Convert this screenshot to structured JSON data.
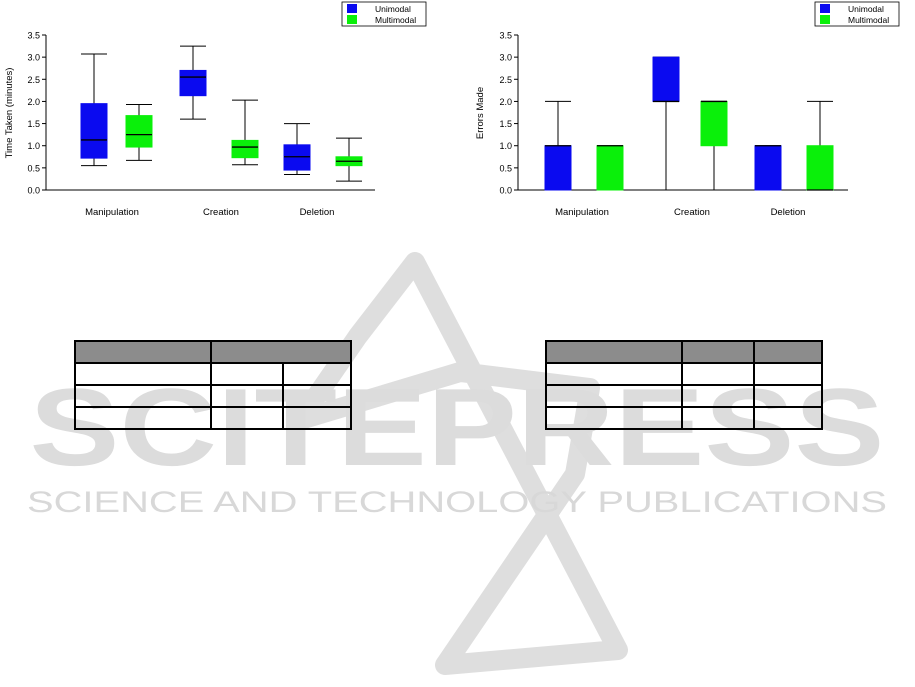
{
  "colors": {
    "unimodal": "#0a0af0",
    "multimodal": "#0af00a",
    "header_fill": "#8c8c8c",
    "watermark": "#d9d9d9"
  },
  "watermark": {
    "word": "SCITEPRESS",
    "tagline": "SCIENCE AND TECHNOLOGY PUBLICATIONS"
  },
  "chart_data": [
    {
      "type": "boxplot",
      "title": "",
      "xlabel": "",
      "ylabel": "Time Taken (minutes)",
      "ylim": [
        0,
        3.5
      ],
      "yticks": [
        "0.0",
        "0.5",
        "1.0",
        "1.5",
        "2.0",
        "2.5",
        "3.0",
        "3.5"
      ],
      "categories": [
        "Manipulation",
        "Creation",
        "Deletion"
      ],
      "legend": {
        "position": "top-right",
        "entries": [
          "Unimodal",
          "Multimodal"
        ]
      },
      "series": [
        {
          "name": "Unimodal",
          "boxes": [
            {
              "min": 0.55,
              "q1": 0.72,
              "median": 1.13,
              "q3": 1.95,
              "max": 3.07
            },
            {
              "min": 1.6,
              "q1": 2.13,
              "median": 2.55,
              "q3": 2.7,
              "max": 3.25
            },
            {
              "min": 0.35,
              "q1": 0.45,
              "median": 0.75,
              "q3": 1.02,
              "max": 1.5
            }
          ]
        },
        {
          "name": "Multimodal",
          "boxes": [
            {
              "min": 0.67,
              "q1": 0.97,
              "median": 1.25,
              "q3": 1.68,
              "max": 1.93
            },
            {
              "min": 0.57,
              "q1": 0.73,
              "median": 0.97,
              "q3": 1.12,
              "max": 2.03
            },
            {
              "min": 0.2,
              "q1": 0.55,
              "median": 0.65,
              "q3": 0.75,
              "max": 1.17
            }
          ]
        }
      ]
    },
    {
      "type": "boxplot",
      "title": "",
      "xlabel": "",
      "ylabel": "Errors Made",
      "ylim": [
        0,
        3.5
      ],
      "yticks": [
        "0.0",
        "0.5",
        "1.0",
        "1.5",
        "2.0",
        "2.5",
        "3.0",
        "3.5"
      ],
      "categories": [
        "Manipulation",
        "Creation",
        "Deletion"
      ],
      "legend": {
        "position": "top-right",
        "entries": [
          "Unimodal",
          "Multimodal"
        ]
      },
      "series": [
        {
          "name": "Unimodal",
          "boxes": [
            {
              "min": 0,
              "q1": 0,
              "median": 1,
              "q3": 1,
              "max": 2
            },
            {
              "min": 0,
              "q1": 2,
              "median": 2,
              "q3": 3,
              "max": 3
            },
            {
              "min": 0,
              "q1": 0,
              "median": 1,
              "q3": 1,
              "max": 1
            }
          ]
        },
        {
          "name": "Multimodal",
          "boxes": [
            {
              "min": 0,
              "q1": 0,
              "median": 1,
              "q3": 1,
              "max": 1
            },
            {
              "min": 0,
              "q1": 1,
              "median": 2,
              "q3": 2,
              "max": 2
            },
            {
              "min": 0,
              "q1": 0,
              "median": 0,
              "q3": 1,
              "max": 2
            }
          ]
        }
      ]
    }
  ],
  "tables": [
    {
      "header": [
        "",
        ""
      ],
      "rows": [
        [
          "",
          "",
          ""
        ],
        [
          "",
          "",
          ""
        ],
        [
          "",
          "",
          ""
        ]
      ]
    },
    {
      "header": [
        "",
        "",
        ""
      ],
      "rows": [
        [
          "",
          "",
          ""
        ],
        [
          "",
          "",
          ""
        ],
        [
          "",
          "",
          ""
        ]
      ]
    }
  ]
}
